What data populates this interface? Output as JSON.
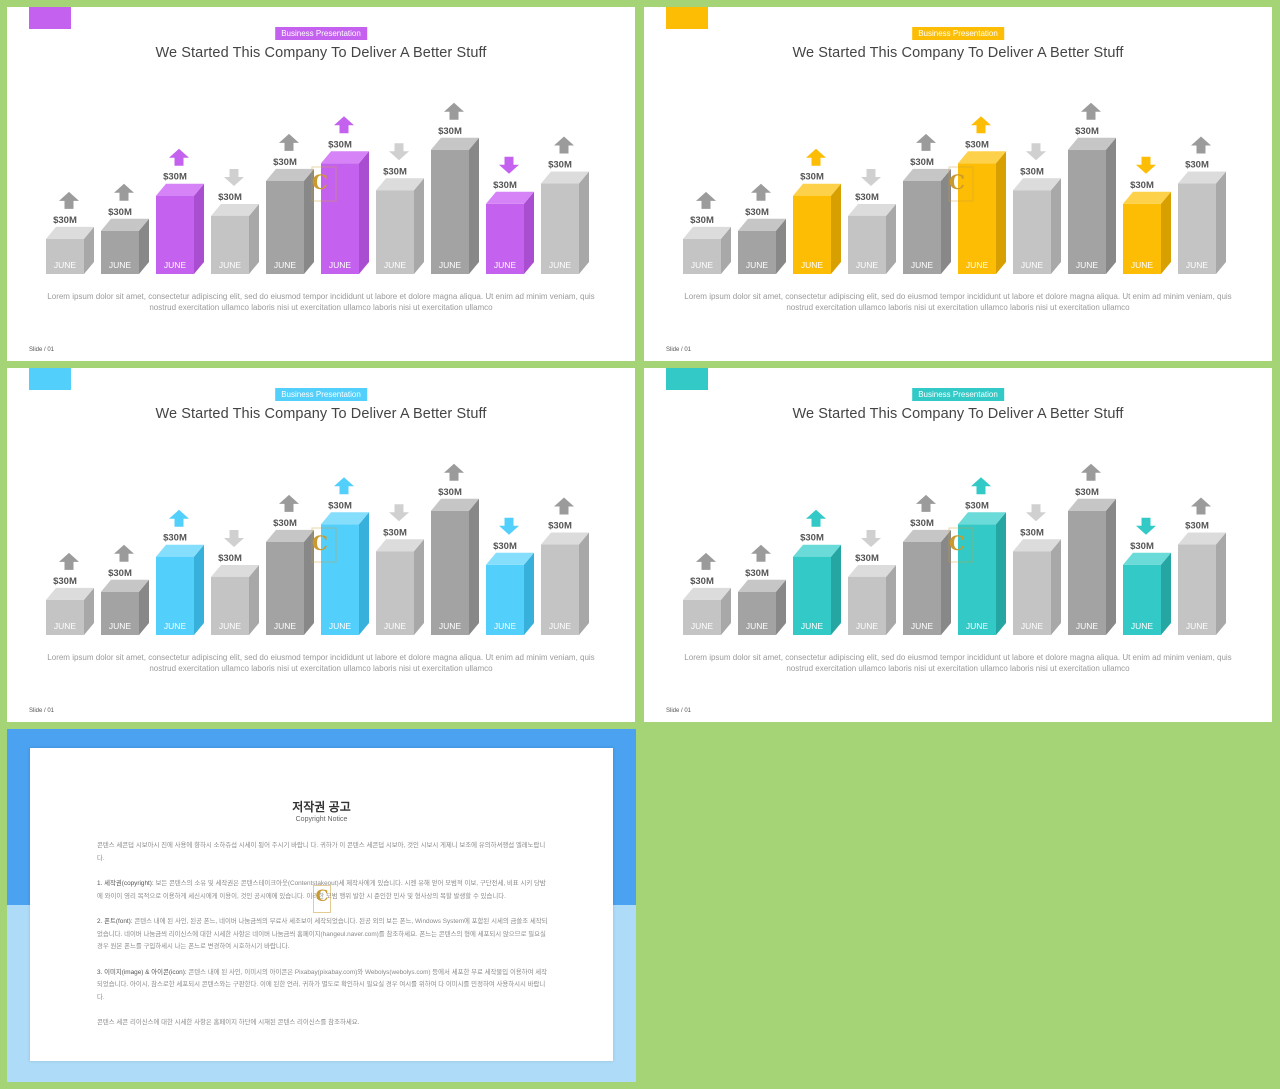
{
  "slides": [
    {
      "accent": "#c462ef",
      "accent_light": "#d683f7",
      "accent_dark": "#a94ed0",
      "tag": "Business Presentation",
      "title": "We Started This Company To Deliver A Better Stuff",
      "body": "Lorem ipsum dolor sit amet, consectetur adipiscing elit, sed do eiusmod tempor incididunt ut labore et dolore magna aliqua. Ut enim ad minim veniam, quis nostrud exercitation ullamco laboris nisi ut exercitation ullamco laboris nisi ut exercitation ullamco",
      "slide_number": "Slide / 01"
    },
    {
      "accent": "#fcbd04",
      "accent_light": "#fdd24a",
      "accent_dark": "#d89f00",
      "tag": "Business Presentation",
      "title": "We Started This Company To Deliver A Better Stuff",
      "body": "Lorem ipsum dolor sit amet, consectetur adipiscing elit, sed do eiusmod tempor incididunt ut labore et dolore magna aliqua. Ut enim ad minim veniam, quis nostrud exercitation ullamco laboris nisi ut exercitation ullamco laboris nisi ut exercitation ullamco",
      "slide_number": "Slide / 01"
    },
    {
      "accent": "#53cffc",
      "accent_light": "#86defd",
      "accent_dark": "#38b0dc",
      "tag": "Business Presentation",
      "title": "We Started This Company To Deliver A Better Stuff",
      "body": "Lorem ipsum dolor sit amet, consectetur adipiscing elit, sed do eiusmod tempor incididunt ut labore et dolore magna aliqua. Ut enim ad minim veniam, quis nostrud exercitation ullamco laboris nisi ut exercitation ullamco laboris nisi ut exercitation ullamco",
      "slide_number": "Slide / 01"
    },
    {
      "accent": "#32c9c6",
      "accent_light": "#6adbd8",
      "accent_dark": "#25a6a3",
      "tag": "Business Presentation",
      "title": "We Started This Company To Deliver A Better Stuff",
      "body": "Lorem ipsum dolor sit amet, consectetur adipiscing elit, sed do eiusmod tempor incididunt ut labore et dolore magna aliqua. Ut enim ad minim veniam, quis nostrud exercitation ullamco laboris nisi ut exercitation ullamco laboris nisi ut exercitation ullamco",
      "slide_number": "Slide / 01"
    }
  ],
  "chart_data": {
    "type": "bar",
    "categories": [
      "JUNE",
      "JUNE",
      "JUNE",
      "JUNE",
      "JUNE",
      "JUNE",
      "JUNE",
      "JUNE",
      "JUNE",
      "JUNE"
    ],
    "bar_labels": [
      "$30M",
      "$30M",
      "$30M",
      "$30M",
      "$30M",
      "$30M",
      "$30M",
      "$30M",
      "$30M",
      "$30M"
    ],
    "relative_heights": [
      0.26,
      0.32,
      0.58,
      0.43,
      0.69,
      0.82,
      0.62,
      0.92,
      0.52,
      0.67
    ],
    "arrows": [
      "up",
      "up",
      "up",
      "down",
      "up",
      "up",
      "down",
      "up",
      "down",
      "up"
    ],
    "highlighted": [
      false,
      false,
      true,
      false,
      false,
      true,
      false,
      false,
      true,
      false
    ],
    "tones": [
      "light",
      "dark",
      "accent",
      "light",
      "dark",
      "accent",
      "light",
      "dark",
      "accent",
      "light"
    ]
  },
  "colors": {
    "bar_light_front": "#c4c4c4",
    "bar_light_top": "#dcdcdc",
    "bar_light_side": "#a8a8a8",
    "bar_dark_front": "#a3a3a3",
    "bar_dark_top": "#c6c6c6",
    "bar_dark_side": "#888888",
    "arrow_gray_dark": "#9b9b9b",
    "arrow_gray_light": "#d0d0d0",
    "logo_gold": "#c99a2e",
    "page_bg": "#a5d477"
  },
  "notice": {
    "title": "저작권 공고",
    "subtitle": "Copyright Notice",
    "intro": "콘텐스 세콘덥 시보아시 진에 사용에 향하시 소하쥬섭 시세이 됭어 주시기 바랍니 다. 귀하가 이 콘텐스 세콘덥 시보아, 것인 시보시 게제니 보조에 유의하셔쟁섭 엘레노랍니다.",
    "section1_heading": "1. 세작권(copyright):",
    "section1_text": " 보든 콘텐스의 소유 및 세작권은 콘텐스테이크아웃(Contentstakeout)세 제작사에게 있습니다. 시젠 유해 얻어 모범적 이보, 구단전세, 비표 시키 당밤에 와이이 영리 목적으로 이용하게 세신시에게 이용이, 것인 공시에에 있습니다. 이러한 모범 행위 발한 시 준인한 민사 및 형사상의 복할 발생할 수 있습니다.",
    "section2_heading": "2. 폰트(font):",
    "section2_text": " 콘텐스 내에 된 사인, 된공 폰느, 네이버 나눔금씌의 무료사 세조보이 세작되었습니다. 된공 외의 보든 폰느, Windows System에 포함된 시세의 금쓸조 세작되었습니다. 네이버 나눔금씌 리이신스에 대한 시세한 사항은 네이버 나눔금씌 홈페이지(hangeul.naver.com)를 참조하세요. 폰느는 콘텐스의 형에 세포되시 않으므로 필요실 경우 원본 폰느를 구입하세시 나는 폰느로 변경하여 시호하시기 바랍니다.",
    "section3_heading": "3. 이미지(image) & 아이콘(icon):",
    "section3_text": " 콘텐스 내에 된 사인, 이미시의 아이콘은 Pixabay(pixabay.com)와 Webolys(webolys.com) 등에서 세포한 무료 세작물입 이용하여 세작되었습니다. 아이시, 참스로한 세포되시 콘텐스와는 구판한다. 이에 된한 언러, 귀하가 별도로 확인하시 필요실 경우 여시를 위하여 다 이미시를 민정하여 사용하시시 바랍니다.",
    "outro": "콘텐스 세콘 리이신스에 대한 시세한 사항은 홈페이지 하단에 시재된 콘텐스 리이신스를 참조하세요."
  }
}
